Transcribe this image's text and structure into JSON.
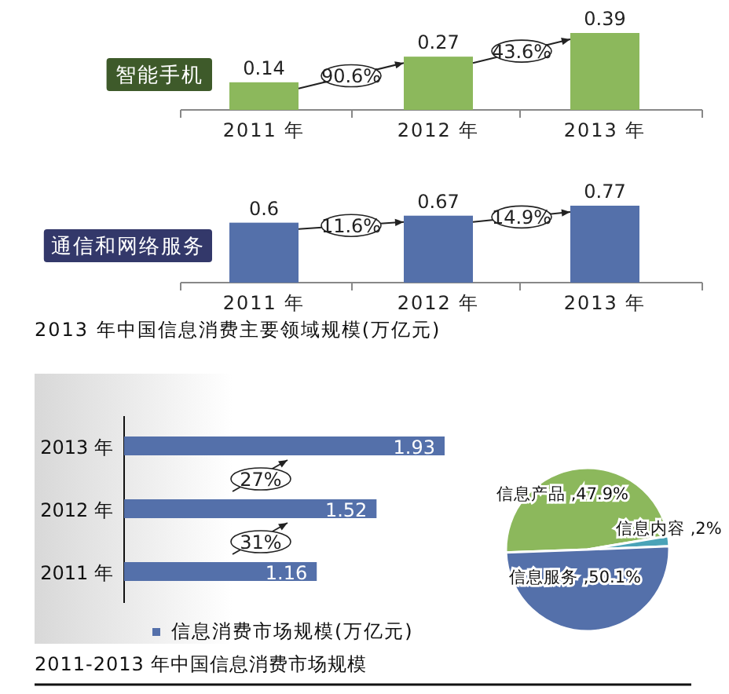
{
  "chart_data": [
    {
      "type": "bar",
      "title": "智能手机",
      "categories": [
        "2011 年",
        "2012 年",
        "2013 年"
      ],
      "values": [
        0.14,
        0.27,
        0.39
      ],
      "color": "#8cb85c",
      "data_labels": true,
      "annotations": [
        "90.6%",
        "43.6%"
      ]
    },
    {
      "type": "bar",
      "title": "通信和网络服务",
      "categories": [
        "2011 年",
        "2012 年",
        "2013 年"
      ],
      "values": [
        0.6,
        0.67,
        0.77
      ],
      "color": "#5470aa",
      "data_labels": true,
      "annotations": [
        "11.6%",
        "14.9%",
        "2013 年中国信息消费主要领域规模(万亿元)"
      ]
    },
    {
      "type": "bar",
      "orientation": "horizontal",
      "title": "2011-2013 年中国信息消费市场规模",
      "categories": [
        "2013 年",
        "2012 年",
        "2011 年"
      ],
      "series": [
        {
          "name": "信息消费市场规模(万亿元)",
          "color": "#5470aa",
          "values": [
            1.93,
            1.52,
            1.16
          ]
        }
      ],
      "data_labels": true,
      "legend": "bottom",
      "annotations": [
        "27%",
        "31%"
      ]
    },
    {
      "type": "pie",
      "categories": [
        "信息产品",
        "信息内容",
        "信息服务"
      ],
      "values": [
        47.9,
        2,
        50.1
      ],
      "colors": [
        "#8cb85c",
        "#4aa3b8",
        "#5470aa"
      ],
      "value_labels": [
        ",47.9%",
        ",2%",
        ",50.1%"
      ]
    }
  ]
}
